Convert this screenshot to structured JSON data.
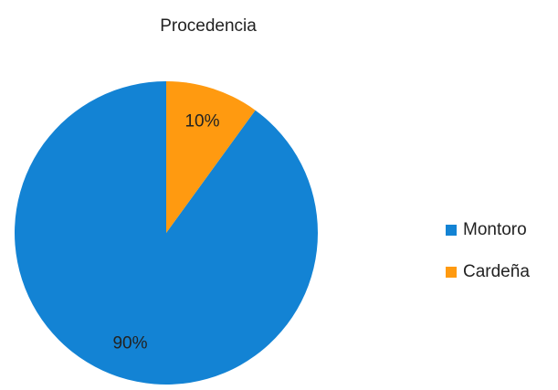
{
  "chart_data": {
    "type": "pie",
    "title": "Procedencia",
    "categories": [
      "Montoro",
      "Cardeña"
    ],
    "values": [
      90,
      10
    ],
    "value_labels": [
      "90%",
      "10%"
    ],
    "colors": [
      "#1383d4",
      "#ff9a10"
    ],
    "legend": "right"
  }
}
